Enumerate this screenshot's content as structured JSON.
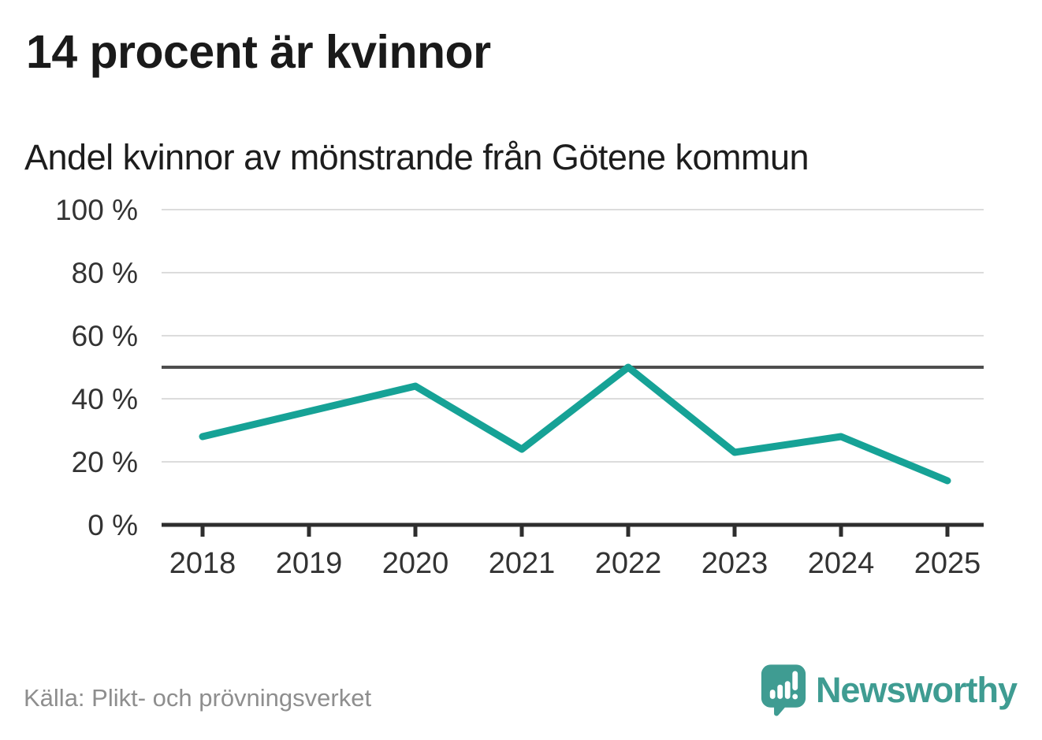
{
  "chart_data": {
    "type": "line",
    "title": "14 procent är kvinnor",
    "subtitle": "Andel kvinnor av mönstrande från Götene kommun",
    "categories": [
      2018,
      2019,
      2020,
      2021,
      2022,
      2023,
      2024,
      2025
    ],
    "series": [
      {
        "name": "Andel kvinnor av mönstrande",
        "values": [
          28,
          36,
          44,
          24,
          50,
          23,
          28,
          14
        ]
      }
    ],
    "unit": "%",
    "ylim": [
      0,
      100
    ],
    "yticks": {
      "values": [
        0,
        20,
        40,
        60,
        80,
        100
      ],
      "labels": [
        "0 %",
        "20 %",
        "40 %",
        "60 %",
        "80 %",
        "100 %"
      ]
    },
    "refline": {
      "value": 50
    },
    "grid": "horizontal",
    "legend": "none",
    "colors": {
      "line": "#16a296",
      "gridline": "#dcdcdc",
      "refline": "#4e4e4e",
      "axis": "#2e2e2e",
      "tick_text": "#333333"
    }
  },
  "footer": {
    "source": "Källa: Plikt- och prövningsverket"
  },
  "logo": {
    "brand": "Newsworthy",
    "icon": "speech-bubble-bar-chart-icon",
    "color": "#3f9c92"
  }
}
